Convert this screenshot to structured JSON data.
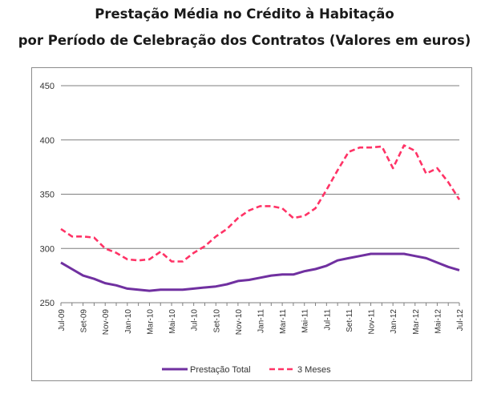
{
  "chart_data": {
    "type": "line",
    "title": "Prestação Média no Crédito à Habitação",
    "subtitle": "por Período de Celebração dos Contratos (Valores em euros)",
    "ylim": [
      250,
      450
    ],
    "yticks": [
      250,
      300,
      350,
      400,
      450
    ],
    "grid": true,
    "legend_position": "bottom",
    "x": [
      "Jul-09",
      "Ago-09",
      "Set-09",
      "Out-09",
      "Nov-09",
      "Dez-09",
      "Jan-10",
      "Fev-10",
      "Mar-10",
      "Abr-10",
      "Mai-10",
      "Jun-10",
      "Jul-10",
      "Ago-10",
      "Set-10",
      "Out-10",
      "Nov-10",
      "Dez-10",
      "Jan-11",
      "Fev-11",
      "Mar-11",
      "Abr-11",
      "Mai-11",
      "Jun-11",
      "Jul-11",
      "Ago-11",
      "Set-11",
      "Out-11",
      "Nov-11",
      "Dez-11",
      "Jan-12",
      "Fev-12",
      "Mar-12",
      "Abr-12",
      "Mai-12",
      "Jun-12",
      "Jul-12"
    ],
    "x_tick_labels": [
      "Jul-09",
      "Set-09",
      "Nov-09",
      "Jan-10",
      "Mar-10",
      "Mai-10",
      "Jul-10",
      "Set-10",
      "Nov-10",
      "Jan-11",
      "Mar-11",
      "Mai-11",
      "Jul-11",
      "Set-11",
      "Nov-11",
      "Jan-12",
      "Mar-12",
      "Mai-12",
      "Jul-12"
    ],
    "series": [
      {
        "name": "Prestação Total",
        "color": "#7030a0",
        "dash": "solid",
        "values": [
          287,
          281,
          275,
          272,
          268,
          266,
          263,
          262,
          261,
          262,
          262,
          262,
          263,
          264,
          265,
          267,
          270,
          271,
          273,
          275,
          276,
          276,
          279,
          281,
          284,
          289,
          291,
          293,
          295,
          295,
          295,
          295,
          293,
          291,
          287,
          283,
          280
        ]
      },
      {
        "name": "3 Meses",
        "color": "#ff3366",
        "dash": "dashed",
        "values": [
          318,
          311,
          311,
          310,
          300,
          296,
          290,
          289,
          290,
          297,
          288,
          288,
          296,
          302,
          311,
          318,
          328,
          335,
          339,
          339,
          337,
          328,
          330,
          337,
          354,
          372,
          389,
          393,
          393,
          394,
          374,
          395,
          390,
          369,
          374,
          361,
          345
        ]
      }
    ]
  }
}
